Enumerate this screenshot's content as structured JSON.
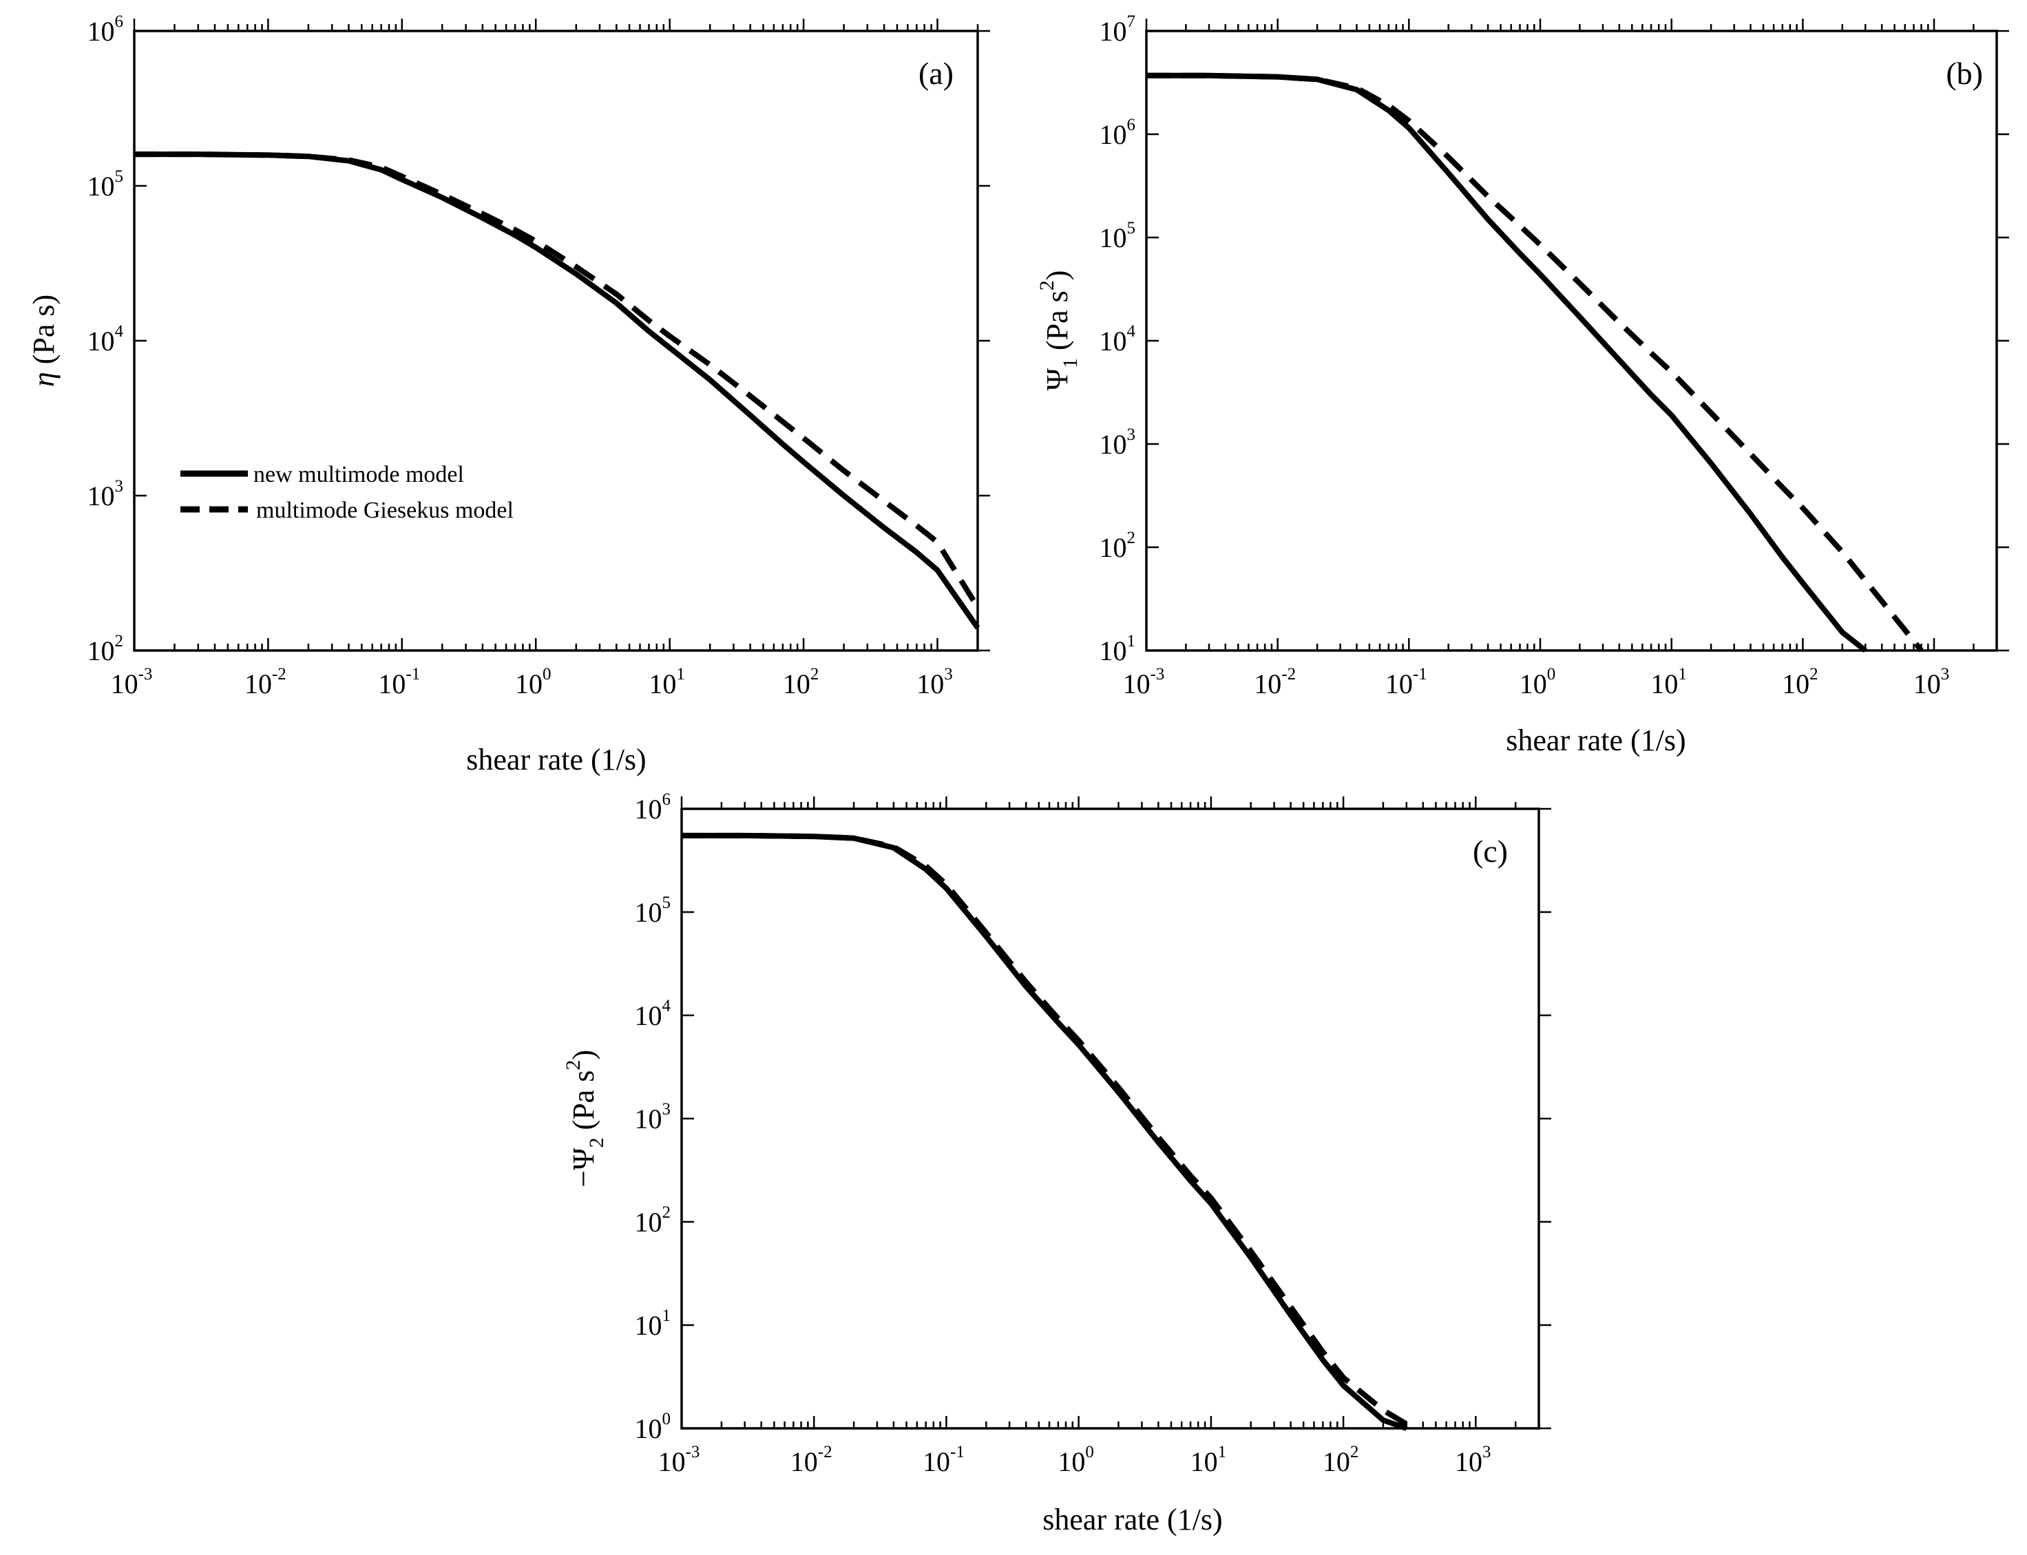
{
  "figure": {
    "colors": {
      "line": "#000000",
      "background": "#ffffff"
    },
    "curve_names": {
      "solid": "new multimode model",
      "dashed": "multimode Giesekus model"
    }
  },
  "chart_data": [
    {
      "id": "a",
      "type": "line",
      "panel_label": "(a)",
      "xscale": "log",
      "yscale": "log",
      "xlim": [
        0.001,
        2000
      ],
      "ylim": [
        100,
        1000000
      ],
      "xlabel": "shear rate (1/s)",
      "ylabel_symbol": "η",
      "ylabel_units": " (Pa s)",
      "x_ticks": [
        {
          "base": "10",
          "exp": "-3",
          "value": 0.001
        },
        {
          "base": "10",
          "exp": "-2",
          "value": 0.01
        },
        {
          "base": "10",
          "exp": "-1",
          "value": 0.1
        },
        {
          "base": "10",
          "exp": "0",
          "value": 1
        },
        {
          "base": "10",
          "exp": "1",
          "value": 10
        },
        {
          "base": "10",
          "exp": "2",
          "value": 100
        },
        {
          "base": "10",
          "exp": "3",
          "value": 1000
        }
      ],
      "y_ticks": [
        {
          "base": "10",
          "exp": "2",
          "value": 100
        },
        {
          "base": "10",
          "exp": "3",
          "value": 1000
        },
        {
          "base": "10",
          "exp": "4",
          "value": 10000
        },
        {
          "base": "10",
          "exp": "5",
          "value": 100000
        },
        {
          "base": "10",
          "exp": "6",
          "value": 1000000
        }
      ],
      "legend": {
        "position": "lower-left",
        "entries": [
          {
            "label": "new multimode model",
            "style": "solid"
          },
          {
            "label": "multimode Giesekus model",
            "style": "dashed"
          }
        ]
      },
      "series": [
        {
          "name": "new multimode model",
          "style": "solid",
          "x": [
            0.001,
            0.003,
            0.01,
            0.02,
            0.04,
            0.07,
            0.1,
            0.2,
            0.4,
            0.7,
            1,
            2,
            4,
            7,
            10,
            20,
            40,
            70,
            100,
            200,
            400,
            700,
            1000,
            2000
          ],
          "y": [
            160000,
            160000,
            158000,
            155000,
            145000,
            127000,
            110000,
            84000,
            62000,
            48000,
            40000,
            27000,
            17500,
            11500,
            9000,
            5600,
            3300,
            2150,
            1650,
            1000,
            620,
            430,
            330,
            140
          ]
        },
        {
          "name": "multimode Giesekus model",
          "style": "dashed",
          "x": [
            0.001,
            0.003,
            0.01,
            0.02,
            0.04,
            0.07,
            0.1,
            0.2,
            0.4,
            0.7,
            1,
            2,
            4,
            7,
            10,
            20,
            40,
            70,
            100,
            200,
            400,
            700,
            1000,
            2000
          ],
          "y": [
            160000,
            160000,
            158000,
            155000,
            147000,
            132000,
            115000,
            88000,
            66000,
            52000,
            44000,
            30000,
            20000,
            13500,
            10700,
            7000,
            4400,
            3000,
            2350,
            1450,
            920,
            640,
            500,
            190
          ]
        }
      ]
    },
    {
      "id": "b",
      "type": "line",
      "panel_label": "(b)",
      "xscale": "log",
      "yscale": "log",
      "xlim": [
        0.001,
        3000
      ],
      "ylim": [
        10,
        10000000
      ],
      "xlabel": "shear rate (1/s)",
      "ylabel_symbol": "Ψ",
      "ylabel_sub": "1",
      "ylabel_units_pre": " (Pa s",
      "ylabel_units_sup": "2",
      "ylabel_units_post": ")",
      "x_ticks": [
        {
          "base": "10",
          "exp": "-3",
          "value": 0.001
        },
        {
          "base": "10",
          "exp": "-2",
          "value": 0.01
        },
        {
          "base": "10",
          "exp": "-1",
          "value": 0.1
        },
        {
          "base": "10",
          "exp": "0",
          "value": 1
        },
        {
          "base": "10",
          "exp": "1",
          "value": 10
        },
        {
          "base": "10",
          "exp": "2",
          "value": 100
        },
        {
          "base": "10",
          "exp": "3",
          "value": 1000
        }
      ],
      "y_ticks": [
        {
          "base": "10",
          "exp": "1",
          "value": 10
        },
        {
          "base": "10",
          "exp": "2",
          "value": 100
        },
        {
          "base": "10",
          "exp": "3",
          "value": 1000
        },
        {
          "base": "10",
          "exp": "4",
          "value": 10000
        },
        {
          "base": "10",
          "exp": "5",
          "value": 100000
        },
        {
          "base": "10",
          "exp": "6",
          "value": 1000000
        },
        {
          "base": "10",
          "exp": "7",
          "value": 10000000
        }
      ],
      "series": [
        {
          "name": "new multimode model",
          "style": "solid",
          "x": [
            0.001,
            0.003,
            0.01,
            0.02,
            0.04,
            0.07,
            0.1,
            0.2,
            0.4,
            0.7,
            1,
            2,
            4,
            7,
            10,
            20,
            40,
            70,
            100,
            200,
            300
          ],
          "y": [
            3700000,
            3700000,
            3600000,
            3400000,
            2700000,
            1700000,
            1150000,
            420000,
            150000,
            70000,
            44000,
            17000,
            6500,
            3000,
            1900,
            650,
            210,
            80,
            45,
            15,
            10
          ]
        },
        {
          "name": "multimode Giesekus model",
          "style": "dashed",
          "x": [
            0.001,
            0.003,
            0.01,
            0.02,
            0.04,
            0.07,
            0.1,
            0.2,
            0.4,
            0.7,
            1,
            2,
            4,
            7,
            10,
            20,
            40,
            70,
            100,
            200,
            400,
            800
          ],
          "y": [
            3700000,
            3700000,
            3600000,
            3400000,
            2800000,
            1900000,
            1350000,
            600000,
            250000,
            130000,
            85000,
            36000,
            15000,
            7600,
            5000,
            2000,
            800,
            380,
            240,
            90,
            30,
            10
          ]
        }
      ]
    },
    {
      "id": "c",
      "type": "line",
      "panel_label": "(c)",
      "xscale": "log",
      "yscale": "log",
      "xlim": [
        0.001,
        3000
      ],
      "ylim": [
        1,
        1000000
      ],
      "xlabel": "shear rate (1/s)",
      "ylabel_prefix": "−Ψ",
      "ylabel_sub": "2",
      "ylabel_units_pre": " (Pa s",
      "ylabel_units_sup": "2",
      "ylabel_units_post": ")",
      "x_ticks": [
        {
          "base": "10",
          "exp": "-3",
          "value": 0.001
        },
        {
          "base": "10",
          "exp": "-2",
          "value": 0.01
        },
        {
          "base": "10",
          "exp": "-1",
          "value": 0.1
        },
        {
          "base": "10",
          "exp": "0",
          "value": 1
        },
        {
          "base": "10",
          "exp": "1",
          "value": 10
        },
        {
          "base": "10",
          "exp": "2",
          "value": 100
        },
        {
          "base": "10",
          "exp": "3",
          "value": 1000
        }
      ],
      "y_ticks": [
        {
          "base": "10",
          "exp": "0",
          "value": 1
        },
        {
          "base": "10",
          "exp": "1",
          "value": 10
        },
        {
          "base": "10",
          "exp": "2",
          "value": 100
        },
        {
          "base": "10",
          "exp": "3",
          "value": 1000
        },
        {
          "base": "10",
          "exp": "4",
          "value": 10000
        },
        {
          "base": "10",
          "exp": "5",
          "value": 100000
        },
        {
          "base": "10",
          "exp": "6",
          "value": 1000000
        }
      ],
      "series": [
        {
          "name": "new multimode model",
          "style": "solid",
          "x": [
            0.001,
            0.003,
            0.01,
            0.02,
            0.04,
            0.07,
            0.1,
            0.2,
            0.4,
            0.7,
            1,
            2,
            4,
            7,
            10,
            20,
            40,
            70,
            100,
            200,
            300
          ],
          "y": [
            550000,
            550000,
            540000,
            520000,
            420000,
            260000,
            170000,
            58000,
            19000,
            8500,
            5200,
            1800,
            590,
            250,
            150,
            45,
            12.5,
            4.6,
            2.6,
            1.2,
            1
          ]
        },
        {
          "name": "multimode Giesekus model",
          "style": "dashed",
          "x": [
            0.001,
            0.003,
            0.01,
            0.02,
            0.04,
            0.07,
            0.1,
            0.2,
            0.4,
            0.7,
            1,
            2,
            4,
            7,
            10,
            20,
            40,
            70,
            100,
            200,
            340
          ],
          "y": [
            550000,
            550000,
            540000,
            520000,
            430000,
            280000,
            185000,
            63000,
            21000,
            9300,
            5700,
            2000,
            660,
            280,
            170,
            52,
            15,
            5.5,
            3.1,
            1.5,
            1
          ]
        }
      ]
    }
  ]
}
